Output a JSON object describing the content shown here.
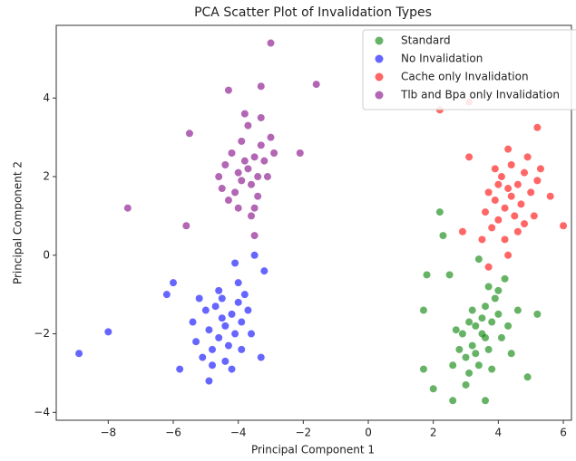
{
  "chart_data": {
    "type": "scatter",
    "title": "PCA Scatter Plot of Invalidation Types",
    "x_label": "Principal Component 1",
    "y_label": "Principal Component 2",
    "xlim": [
      -9.6,
      6.25
    ],
    "ylim": [
      -4.2,
      5.85
    ],
    "xticks": [
      {
        "value": -8,
        "label": "−8"
      },
      {
        "value": -6,
        "label": "−6"
      },
      {
        "value": -4,
        "label": "−4"
      },
      {
        "value": -2,
        "label": "−2"
      },
      0,
      2,
      4,
      6
    ],
    "yticks": [
      {
        "value": -4,
        "label": "−4"
      },
      {
        "value": -2,
        "label": "−2"
      },
      0,
      2,
      4
    ],
    "legend": "upper right",
    "alpha": 0.6,
    "series": [
      {
        "name": "Standard",
        "color": "#008000",
        "x": [
          2.2,
          2.3,
          1.8,
          1.7,
          1.7,
          2.0,
          2.6,
          3.6,
          4.9,
          5.2,
          3.4,
          2.5,
          4.2,
          3.5,
          3.2,
          3.8,
          3.0,
          4.0,
          3.3,
          3.7,
          2.9,
          4.1,
          3.6,
          3.4,
          3.1,
          3.9,
          2.8,
          4.3,
          3.5,
          3.2,
          3.8,
          2.7,
          4.4,
          3.0,
          3.6,
          3.3,
          4.0,
          2.6,
          4.6,
          3.7,
          3.1
        ],
        "y": [
          1.1,
          0.5,
          -0.5,
          -1.4,
          -2.9,
          -3.4,
          -3.7,
          -3.7,
          -3.1,
          -1.5,
          -0.1,
          -0.5,
          -0.6,
          -2.0,
          -2.3,
          -1.7,
          -2.6,
          -1.5,
          -1.8,
          -2.4,
          -2.0,
          -2.1,
          -1.3,
          -2.8,
          -3.0,
          -1.1,
          -2.4,
          -1.8,
          -1.6,
          -1.4,
          -2.9,
          -1.9,
          -2.5,
          -3.3,
          -2.1,
          -2.5,
          -0.9,
          -2.8,
          -1.4,
          -0.8,
          -1.7
        ]
      },
      {
        "name": "No Invalidation",
        "color": "#0000ff",
        "x": [
          -8.9,
          -8.0,
          -6.2,
          -6.0,
          -5.8,
          -4.9,
          -3.5,
          -3.2,
          -4.1,
          -3.3,
          -4.4,
          -4.6,
          -4.2,
          -4.8,
          -4.0,
          -4.5,
          -4.3,
          -4.9,
          -3.9,
          -4.7,
          -5.1,
          -4.1,
          -3.8,
          -5.0,
          -4.4,
          -3.7,
          -5.3,
          -4.6,
          -4.2,
          -3.6,
          -5.4,
          -4.8,
          -4.0,
          -5.2,
          -3.9,
          -4.5
        ],
        "y": [
          -2.5,
          -1.95,
          -1.0,
          -0.7,
          -2.9,
          -3.2,
          0.0,
          -0.4,
          -0.2,
          -2.6,
          -1.8,
          -2.1,
          -1.5,
          -2.4,
          -1.2,
          -1.6,
          -2.3,
          -1.9,
          -1.7,
          -1.3,
          -2.6,
          -2.0,
          -1.0,
          -1.4,
          -2.7,
          -1.4,
          -2.2,
          -0.9,
          -2.9,
          -2.0,
          -1.7,
          -2.8,
          -0.7,
          -1.1,
          -2.4,
          -1.1
        ]
      },
      {
        "name": "Cache only Invalidation",
        "color": "#ff0000",
        "x": [
          2.2,
          3.1,
          5.2,
          6.0,
          3.7,
          4.3,
          2.9,
          5.6,
          3.1,
          4.4,
          4.2,
          4.6,
          4.0,
          4.8,
          4.3,
          4.5,
          3.9,
          4.7,
          4.1,
          5.0,
          3.8,
          4.9,
          4.4,
          3.6,
          4.6,
          5.2,
          4.0,
          3.7,
          5.1,
          4.3,
          3.5,
          4.8,
          4.2,
          5.3,
          3.9
        ],
        "y": [
          3.7,
          3.9,
          3.25,
          0.75,
          -0.3,
          0.0,
          0.6,
          1.5,
          2.5,
          1.5,
          1.2,
          1.8,
          0.9,
          2.1,
          1.7,
          1.0,
          1.4,
          1.3,
          2.0,
          1.6,
          0.7,
          2.5,
          2.3,
          1.1,
          0.6,
          1.9,
          1.8,
          1.6,
          1.0,
          2.7,
          0.4,
          0.8,
          0.4,
          2.2,
          2.2
        ]
      },
      {
        "name": "Tlb and Bpa only Invalidation",
        "color": "#800080",
        "x": [
          -3.0,
          -7.4,
          -5.6,
          -5.5,
          -1.6,
          -4.3,
          -3.5,
          -3.3,
          -2.1,
          -3.7,
          -3.9,
          -3.5,
          -4.1,
          -3.3,
          -3.8,
          -3.6,
          -4.0,
          -3.4,
          -3.9,
          -4.3,
          -3.2,
          -3.7,
          -4.2,
          -3.0,
          -4.5,
          -3.5,
          -3.8,
          -3.1,
          -4.4,
          -3.6,
          -2.9,
          -4.6,
          -3.3,
          -4.0,
          -3.4
        ],
        "y": [
          5.4,
          1.2,
          0.75,
          3.1,
          4.35,
          4.2,
          0.5,
          4.3,
          2.6,
          2.2,
          1.9,
          2.5,
          1.6,
          2.8,
          2.4,
          1.8,
          2.1,
          2.0,
          2.9,
          1.4,
          2.4,
          3.3,
          2.6,
          3.0,
          1.7,
          1.2,
          3.6,
          2.0,
          2.3,
          1.0,
          2.6,
          2.0,
          3.5,
          1.2,
          1.5
        ]
      }
    ]
  }
}
